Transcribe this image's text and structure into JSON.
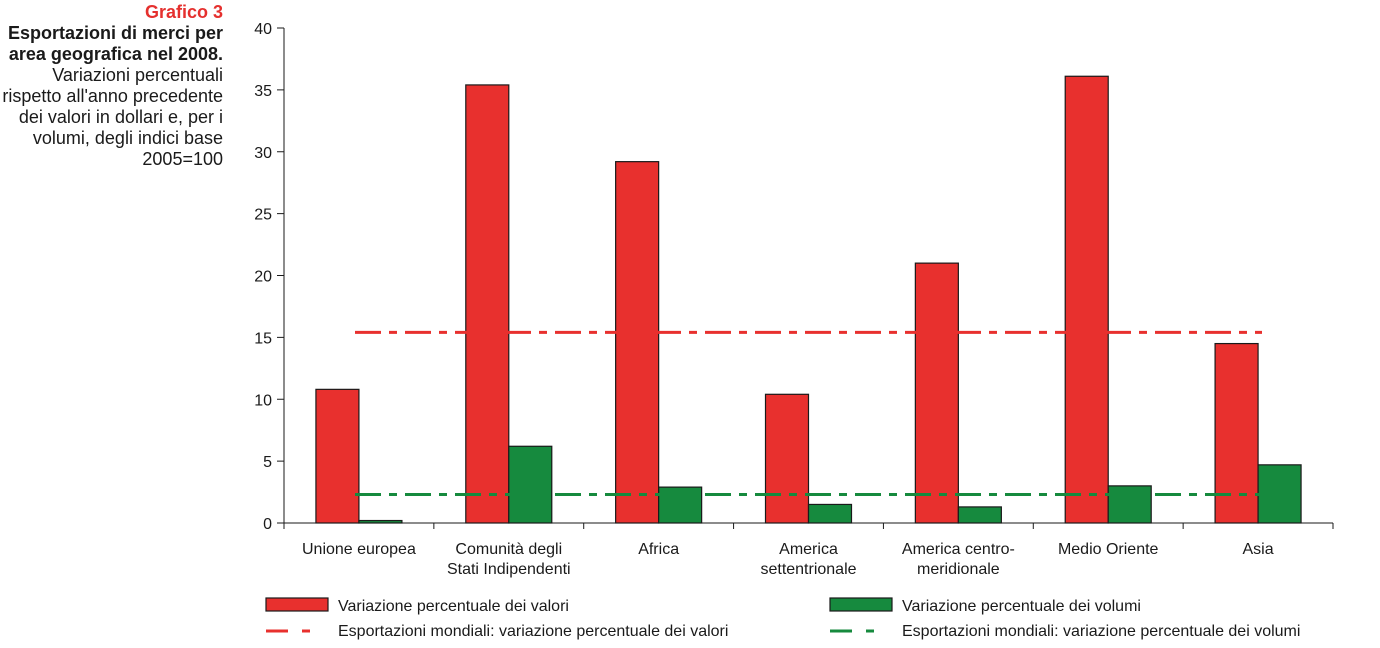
{
  "caption": {
    "number": "Grafico 3",
    "title": "Esportazioni di merci per area geografica nel 2008.",
    "subtitle": "Variazioni percentuali rispetto all'anno precedente dei valori in dollari e, per i volumi, degli indici base 2005=100"
  },
  "colors": {
    "values": "#e8302e",
    "volumes": "#168a3e"
  },
  "chart_data": {
    "type": "bar",
    "categories": [
      [
        "Unione europea"
      ],
      [
        "Comunità degli",
        "Stati Indipendenti"
      ],
      [
        "Africa"
      ],
      [
        "America",
        "settentrionale"
      ],
      [
        "America centro-",
        "meridionale"
      ],
      [
        "Medio Oriente"
      ],
      [
        "Asia"
      ]
    ],
    "series": [
      {
        "name": "Variazione percentuale dei valori",
        "values": [
          10.8,
          35.4,
          29.2,
          10.4,
          21.0,
          36.1,
          14.5
        ]
      },
      {
        "name": "Variazione percentuale dei volumi",
        "values": [
          0.2,
          6.2,
          2.9,
          1.5,
          1.3,
          3.0,
          4.7
        ]
      }
    ],
    "reference_lines": [
      {
        "name": "Esportazioni mondiali: variazione percentuale dei valori",
        "value": 15.4
      },
      {
        "name": "Esportazioni mondiali: variazione percentuale dei volumi",
        "value": 2.3
      }
    ],
    "ylim": [
      0,
      40
    ],
    "yticks": [
      0,
      5,
      10,
      15,
      20,
      25,
      30,
      35,
      40
    ],
    "grid": false,
    "legend_position": "bottom"
  }
}
